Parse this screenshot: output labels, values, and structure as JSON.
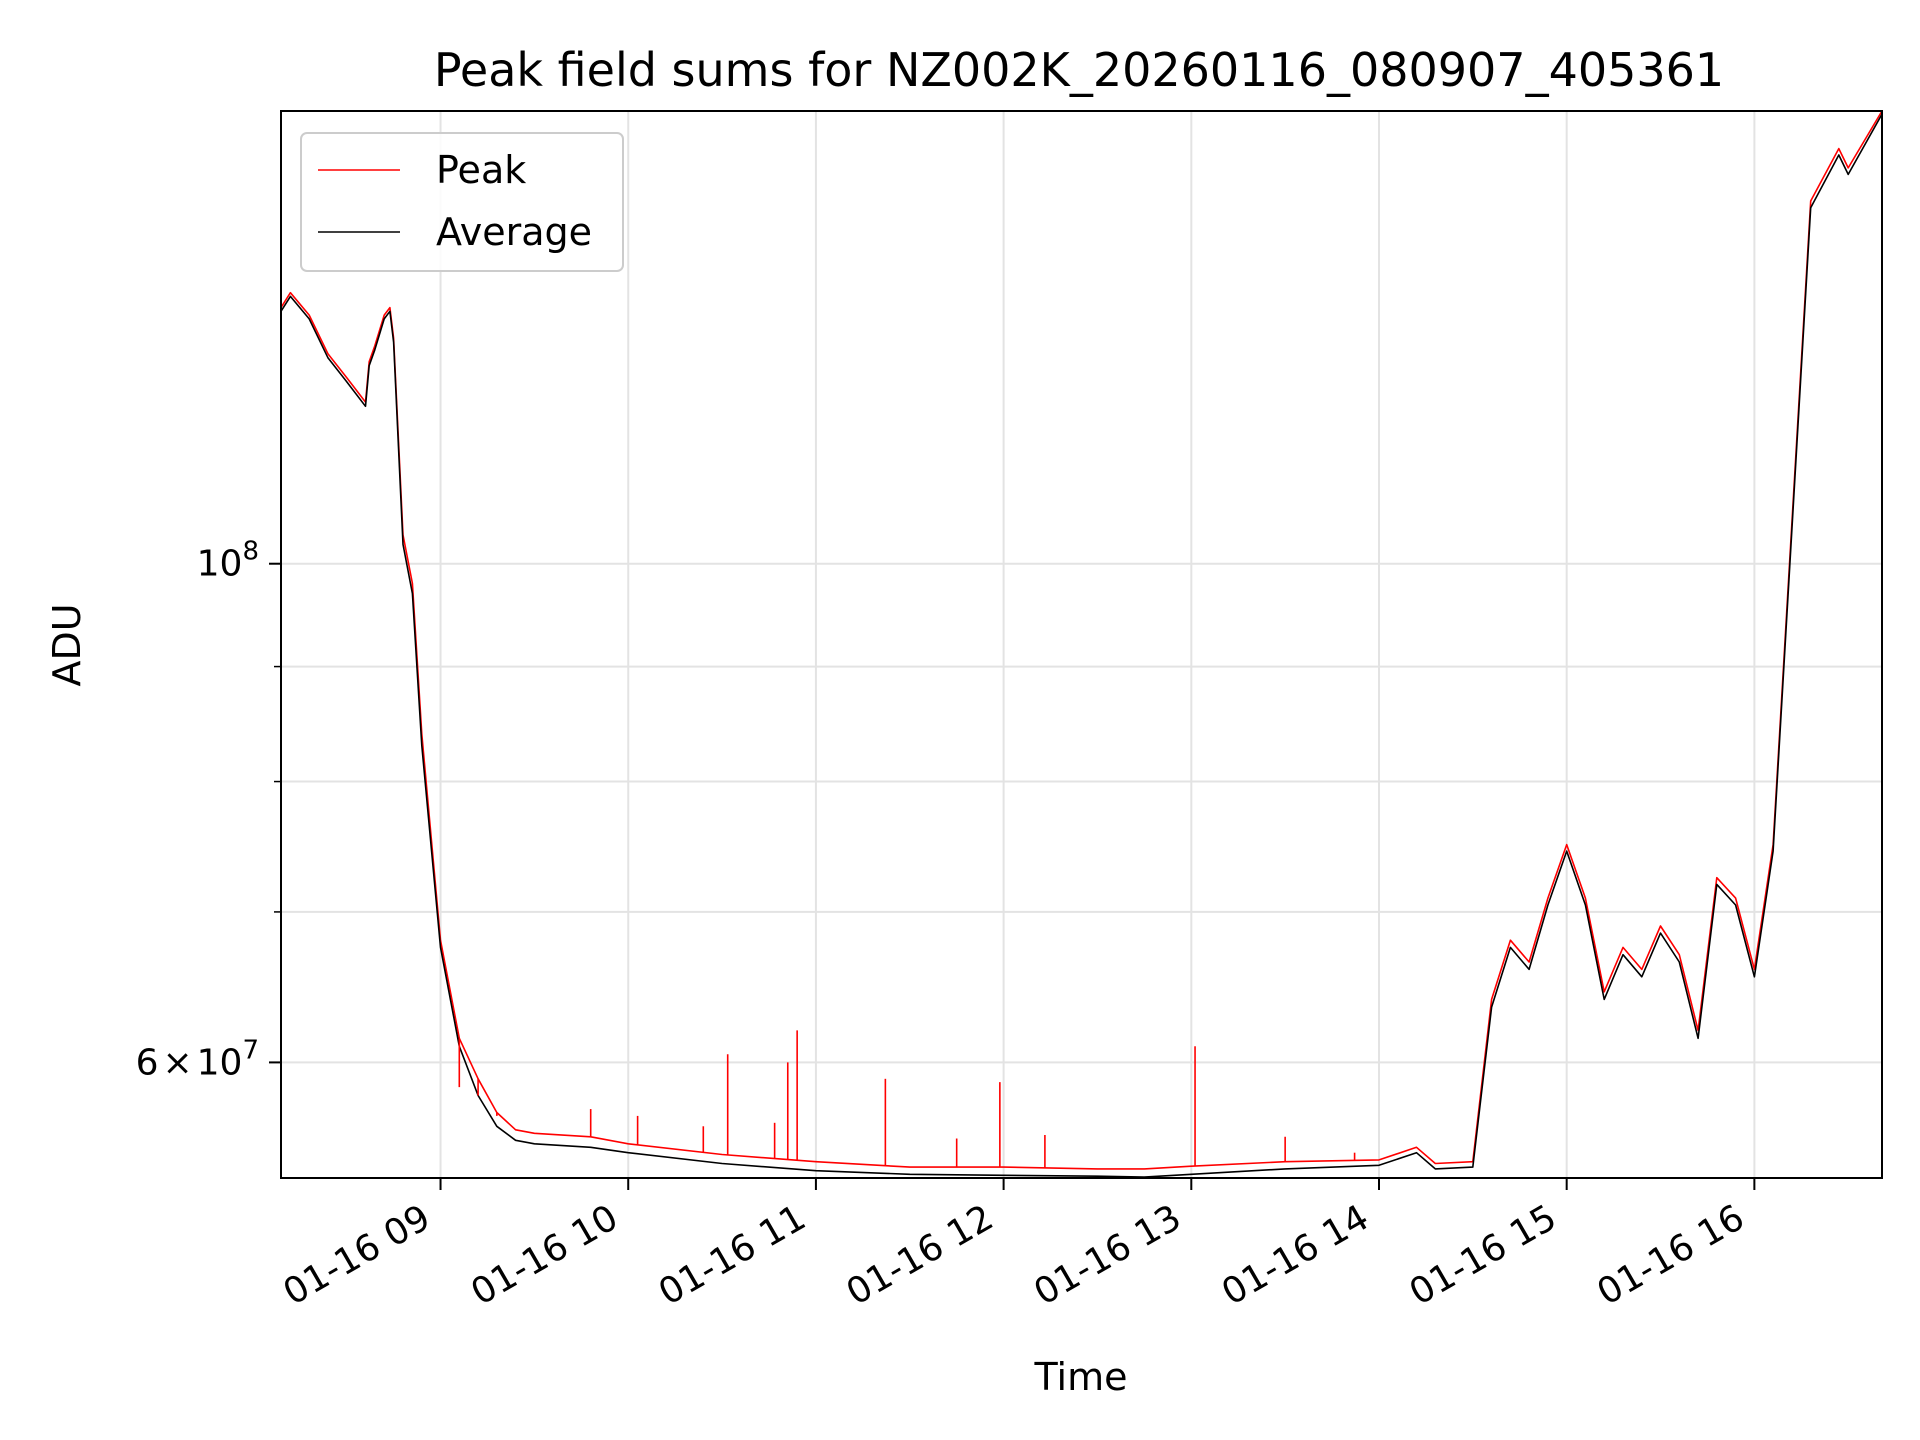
{
  "chart_data": {
    "type": "line",
    "title": "Peak field sums for NZ002K_20260116_080907_405361",
    "xlabel": "Time",
    "ylabel": "ADU",
    "yscale": "log",
    "xlim": [
      8.15,
      16.68
    ],
    "ylim": [
      53300000,
      159000000
    ],
    "grid": true,
    "legend_location": "upper-left",
    "x_ticks": [
      {
        "value": 9,
        "label": "01-16 09"
      },
      {
        "value": 10,
        "label": "01-16 10"
      },
      {
        "value": 11,
        "label": "01-16 11"
      },
      {
        "value": 12,
        "label": "01-16 12"
      },
      {
        "value": 13,
        "label": "01-16 13"
      },
      {
        "value": 14,
        "label": "01-16 14"
      },
      {
        "value": 15,
        "label": "01-16 15"
      },
      {
        "value": 16,
        "label": "01-16 16"
      }
    ],
    "y_major_ticks": [
      {
        "value": 100000000,
        "base": "10",
        "exp": "8"
      },
      {
        "value": 60000000,
        "coef": "6",
        "times": "×",
        "base": "10",
        "exp": "7"
      }
    ],
    "y_minor_ticks": [
      90000000,
      80000000,
      70000000
    ],
    "series": [
      {
        "name": "Peak",
        "color": "#ff0000",
        "x": [
          8.15,
          8.2,
          8.3,
          8.4,
          8.5,
          8.6,
          8.62,
          8.65,
          8.7,
          8.73,
          8.75,
          8.8,
          8.85,
          8.9,
          9.0,
          9.1,
          9.2,
          9.3,
          9.4,
          9.5,
          9.8,
          10.0,
          10.5,
          11.0,
          11.5,
          12.0,
          12.5,
          12.75,
          13.0,
          13.5,
          14.0,
          14.2,
          14.3,
          14.5,
          14.6,
          14.7,
          14.8,
          14.9,
          15.0,
          15.1,
          15.2,
          15.3,
          15.4,
          15.5,
          15.6,
          15.7,
          15.8,
          15.9,
          16.0,
          16.1,
          16.3,
          16.45,
          16.5,
          16.68
        ],
        "y": [
          130000000,
          132000000,
          129000000,
          124000000,
          121000000,
          118000000,
          123000000,
          125000000,
          129000000,
          130000000,
          126000000,
          103000000,
          98000000,
          84000000,
          68000000,
          61500000,
          59000000,
          57000000,
          56000000,
          55800000,
          55600000,
          55200000,
          54600000,
          54200000,
          53900000,
          53900000,
          53800000,
          53800000,
          53950000,
          54200000,
          54300000,
          55000000,
          54100000,
          54200000,
          64000000,
          68000000,
          66500000,
          71000000,
          75000000,
          71000000,
          64500000,
          67500000,
          66000000,
          69000000,
          67000000,
          62000000,
          72500000,
          71000000,
          66000000,
          75000000,
          145000000,
          153000000,
          150000000,
          159000000
        ]
      },
      {
        "name": "Average",
        "color": "#000000",
        "x": [
          8.15,
          8.2,
          8.3,
          8.4,
          8.5,
          8.6,
          8.62,
          8.65,
          8.7,
          8.73,
          8.75,
          8.8,
          8.85,
          8.9,
          9.0,
          9.1,
          9.2,
          9.3,
          9.4,
          9.5,
          9.8,
          10.0,
          10.5,
          11.0,
          11.5,
          12.0,
          12.5,
          12.75,
          13.0,
          13.5,
          14.0,
          14.2,
          14.3,
          14.5,
          14.6,
          14.7,
          14.8,
          14.9,
          15.0,
          15.1,
          15.2,
          15.3,
          15.4,
          15.5,
          15.6,
          15.7,
          15.8,
          15.9,
          16.0,
          16.1,
          16.3,
          16.45,
          16.5,
          16.68
        ],
        "y": [
          129500000,
          131500000,
          128500000,
          123500000,
          120500000,
          117500000,
          122500000,
          124500000,
          128500000,
          129500000,
          125500000,
          102000000,
          97000000,
          83000000,
          67500000,
          61000000,
          58000000,
          56200000,
          55400000,
          55200000,
          55000000,
          54700000,
          54100000,
          53700000,
          53500000,
          53450000,
          53400000,
          53350000,
          53500000,
          53800000,
          54000000,
          54700000,
          53800000,
          53900000,
          63500000,
          67500000,
          66000000,
          70500000,
          74500000,
          70500000,
          64000000,
          67000000,
          65500000,
          68500000,
          66500000,
          61500000,
          72000000,
          70500000,
          65500000,
          74500000,
          144000000,
          152000000,
          149000000,
          158500000
        ]
      }
    ],
    "peak_spikes": [
      {
        "x": 9.1,
        "y": 58500000
      },
      {
        "x": 9.2,
        "y": 58000000
      },
      {
        "x": 9.3,
        "y": 56800000
      },
      {
        "x": 9.8,
        "y": 57200000
      },
      {
        "x": 10.05,
        "y": 56800000
      },
      {
        "x": 10.4,
        "y": 56200000
      },
      {
        "x": 10.53,
        "y": 60500000
      },
      {
        "x": 10.78,
        "y": 56400000
      },
      {
        "x": 10.85,
        "y": 60000000
      },
      {
        "x": 10.9,
        "y": 62000000
      },
      {
        "x": 11.37,
        "y": 59000000
      },
      {
        "x": 11.75,
        "y": 55500000
      },
      {
        "x": 11.98,
        "y": 58800000
      },
      {
        "x": 12.22,
        "y": 55700000
      },
      {
        "x": 13.02,
        "y": 61000000
      },
      {
        "x": 13.5,
        "y": 55600000
      },
      {
        "x": 13.87,
        "y": 54700000
      }
    ]
  }
}
